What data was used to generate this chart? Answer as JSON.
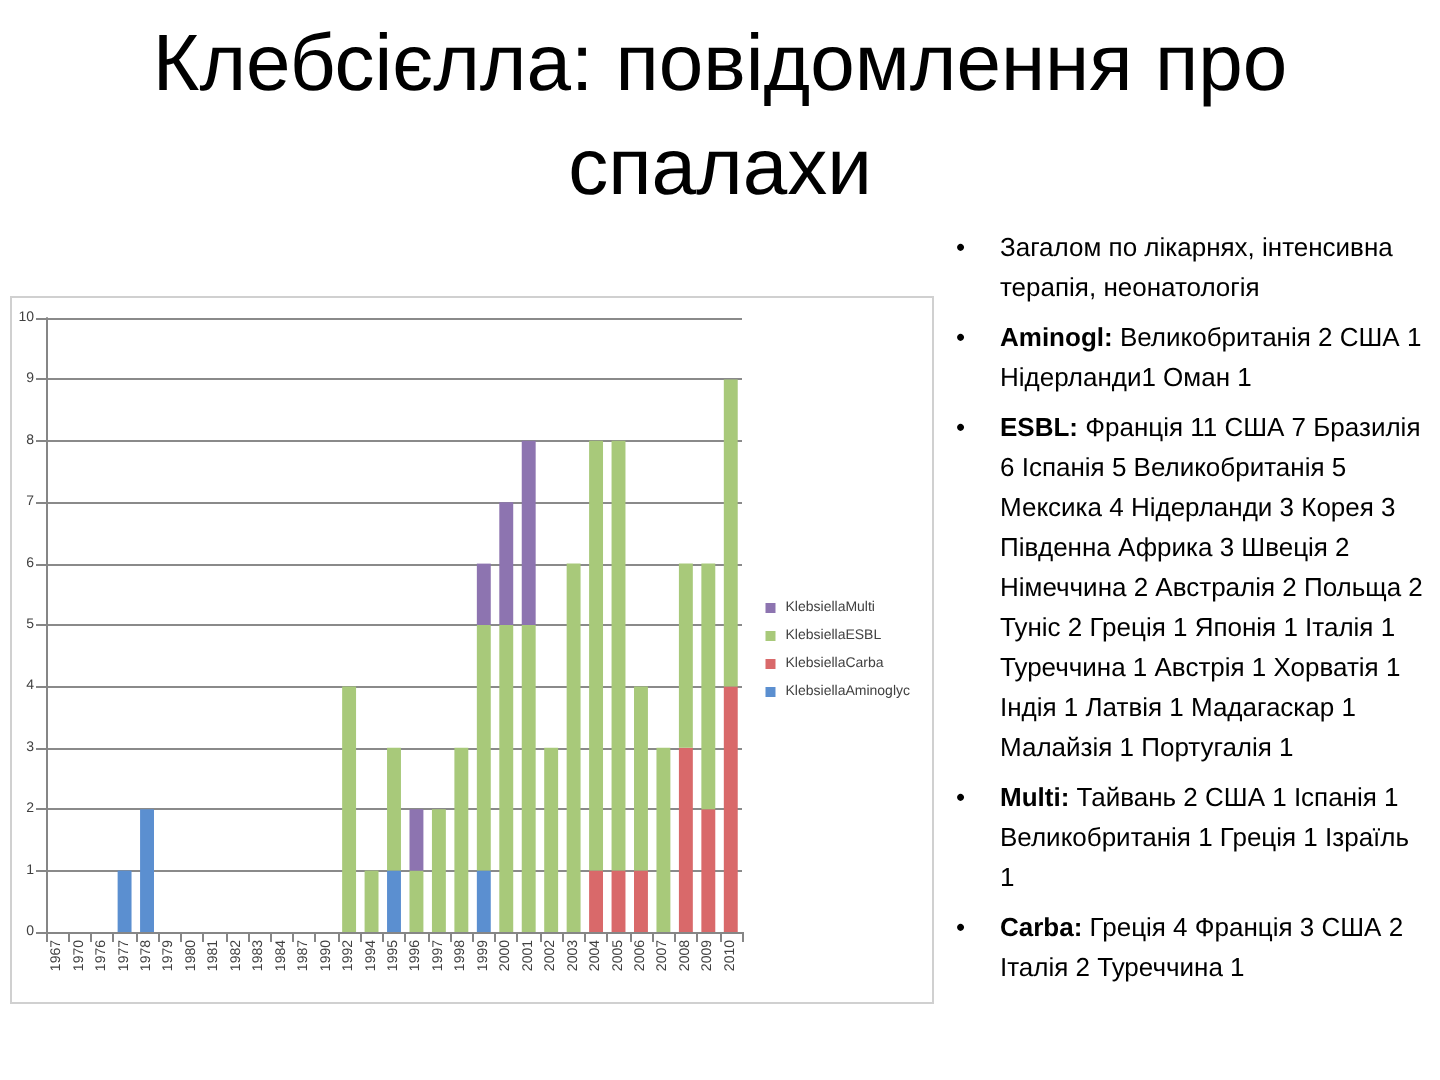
{
  "chart_data": {
    "type": "bar",
    "title": "Клебсієлла: повідомлення про спалахи",
    "categories": [
      "1967",
      "1970",
      "1976",
      "1977",
      "1978",
      "1979",
      "1980",
      "1981",
      "1982",
      "1983",
      "1984",
      "1987",
      "1990",
      "1992",
      "1994",
      "1995",
      "1996",
      "1997",
      "1998",
      "1999",
      "2000",
      "2001",
      "2002",
      "2003",
      "2004",
      "2005",
      "2006",
      "2007",
      "2008",
      "2009",
      "2010"
    ],
    "series": [
      {
        "name": "KlebsiellaAminoglyc",
        "color": "#5b8fd0",
        "values": [
          0,
          0,
          0,
          1,
          2,
          0,
          0,
          0,
          0,
          0,
          0,
          0,
          0,
          0,
          0,
          1,
          0,
          0,
          0,
          1,
          0,
          0,
          0,
          0,
          0,
          0,
          0,
          0,
          0,
          0,
          0
        ]
      },
      {
        "name": "KlebsiellaCarba",
        "color": "#d9696a",
        "values": [
          0,
          0,
          0,
          0,
          0,
          0,
          0,
          0,
          0,
          0,
          0,
          0,
          0,
          0,
          0,
          0,
          0,
          0,
          0,
          0,
          0,
          0,
          0,
          0,
          1,
          1,
          1,
          0,
          3,
          2,
          4
        ]
      },
      {
        "name": "KlebsiellaESBL",
        "color": "#a8c97a",
        "values": [
          0,
          0,
          0,
          0,
          0,
          0,
          0,
          0,
          0,
          0,
          0,
          0,
          0,
          4,
          1,
          2,
          1,
          2,
          3,
          4,
          5,
          5,
          3,
          6,
          7,
          7,
          3,
          3,
          3,
          4,
          5
        ]
      },
      {
        "name": "KlebsiellaMulti",
        "color": "#8d74b0",
        "values": [
          0,
          0,
          0,
          0,
          0,
          0,
          0,
          0,
          0,
          0,
          0,
          0,
          0,
          0,
          0,
          0,
          1,
          0,
          0,
          1,
          2,
          3,
          0,
          0,
          0,
          0,
          0,
          0,
          0,
          0,
          0
        ]
      }
    ],
    "stacked": true,
    "ylim": [
      0,
      10
    ],
    "yticks": [
      0,
      1,
      2,
      3,
      4,
      5,
      6,
      7,
      8,
      9,
      10
    ],
    "grid": "y",
    "legend": "right",
    "annotations": [
      "• Загалом по лікарнях, інтенсивна терапія, неонатологія",
      "• Aminogl: Великобританія 2 США 1 Нідерланди1 Оман 1",
      "• ESBL: Франція 11 США 7 Бразилія 6 Іспанія 5 Великобританія 5 Мексика 4 Нідерланди 3 Корея 3 Південна Африка 3 Швеція 2 Німеччина 2 Австралія 2 Польща 2 Туніс 2 Греція 1 Японія 1 Італія 1 Туреччина 1 Австрія 1 Хорватія 1 Індія 1 Латвія 1 Мадагаскар 1 Малайзія 1 Португалія 1",
      "• Multi: Тайвань 2 США 1 Іспанія 1 Великобританія 1 Греція 1 Ізраїль 1",
      "• Carba: Греція 4 Франція 3 США 2 Італія 2 Туреччина 1"
    ]
  }
}
